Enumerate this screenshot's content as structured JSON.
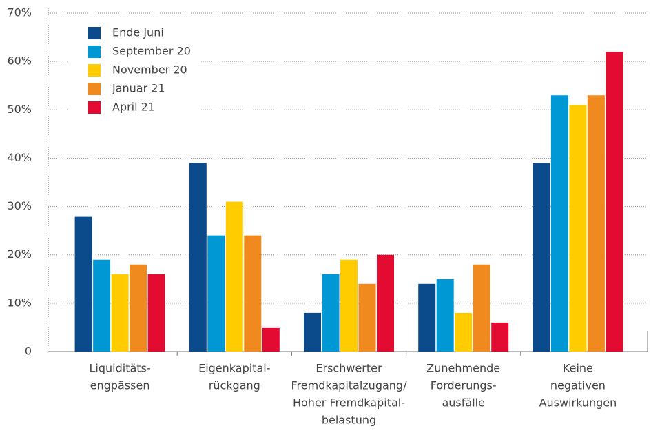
{
  "chart_data": {
    "type": "bar",
    "categories": [
      [
        "Liquiditäts-",
        "engpässen"
      ],
      [
        "Eigenkapital-",
        "rückgang"
      ],
      [
        "Erschwerter",
        "Fremdkapitalzugang/",
        "Hoher Fremdkapital-",
        "belastung"
      ],
      [
        "Zunehmende",
        "Forderungs-",
        "ausfälle"
      ],
      [
        "Keine",
        "negativen",
        "Auswirkungen"
      ]
    ],
    "series": [
      {
        "name": "Ende Juni",
        "color": "#0b4a8b",
        "values": [
          28,
          39,
          8,
          14,
          39
        ]
      },
      {
        "name": "September 20",
        "color": "#0098d4",
        "values": [
          19,
          24,
          16,
          15,
          53
        ]
      },
      {
        "name": "November 20",
        "color": "#ffcc00",
        "values": [
          16,
          31,
          19,
          8,
          51
        ]
      },
      {
        "name": "Januar 21",
        "color": "#f08a1f",
        "values": [
          18,
          24,
          14,
          18,
          53
        ]
      },
      {
        "name": "April 21",
        "color": "#e30b31",
        "values": [
          16,
          5,
          20,
          6,
          62
        ]
      }
    ],
    "ylim": [
      0,
      70
    ],
    "yticks": [
      0,
      {
        "value": 10,
        "label": "10%"
      },
      {
        "value": 20,
        "label": "20%"
      },
      {
        "value": 30,
        "label": "30%"
      },
      {
        "value": 40,
        "label": "40%"
      },
      {
        "value": 50,
        "label": "50%"
      },
      {
        "value": 60,
        "label": "60%"
      },
      {
        "value": 70,
        "label": "70%"
      }
    ],
    "grid": true,
    "legend": "upper left"
  }
}
